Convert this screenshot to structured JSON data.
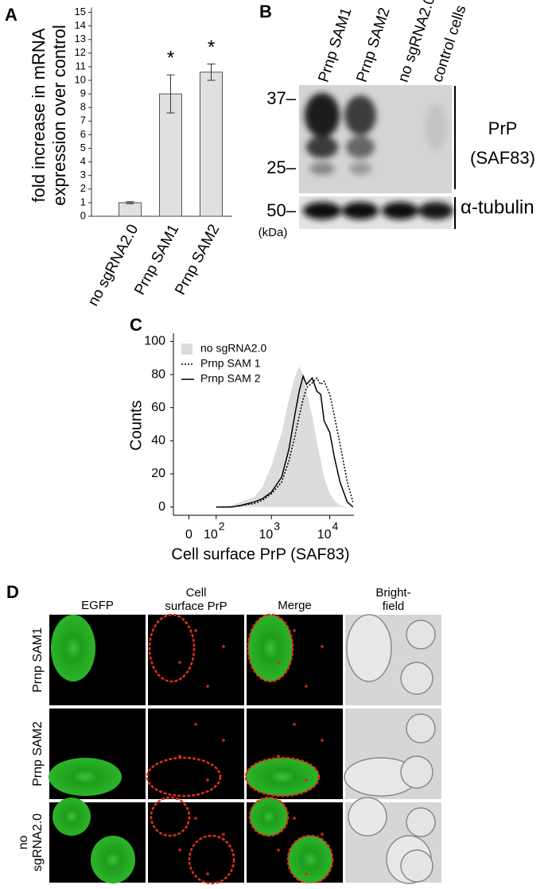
{
  "chart_data": [
    {
      "type": "bar",
      "panel": "A",
      "ylabel": [
        "fold increase in mRNA",
        "expression over control"
      ],
      "categories": [
        "no sgRNA2.0",
        "Prnp SAM1",
        "Prnp SAM2"
      ],
      "values": [
        1,
        9,
        10.6
      ],
      "errors": [
        0.07,
        1.4,
        0.6
      ],
      "annotations": [
        null,
        "*",
        "*"
      ],
      "color": "#e0e0e0",
      "ylim": [
        0,
        15
      ],
      "yticks": [
        0,
        1,
        2,
        3,
        4,
        5,
        6,
        7,
        8,
        9,
        10,
        11,
        12,
        13,
        14,
        15
      ]
    },
    {
      "type": "line",
      "panel": "C",
      "xlabel": "Cell surface PrP (SAF83)",
      "ylabel": "Counts",
      "x": [
        100,
        200,
        300,
        500,
        700,
        1000,
        1500,
        2000,
        2500,
        3000,
        3500,
        4000,
        5000,
        6000,
        7000,
        8000,
        10000,
        12000,
        15000,
        20000,
        25000
      ],
      "series": [
        {
          "name": "no sgRNA2.0",
          "color": "#dcdcdc",
          "style": "fill",
          "values": [
            0,
            1,
            3,
            6,
            12,
            25,
            45,
            65,
            78,
            85,
            80,
            70,
            55,
            40,
            28,
            18,
            8,
            4,
            1,
            0,
            0
          ]
        },
        {
          "name": "Prnp SAM 1",
          "color": "#000000",
          "style": "dotted",
          "values": [
            0,
            0,
            1,
            2,
            4,
            8,
            15,
            28,
            42,
            55,
            65,
            72,
            75,
            78,
            74,
            76,
            68,
            55,
            38,
            15,
            3
          ]
        },
        {
          "name": "Prnp SAM 2",
          "color": "#000000",
          "style": "solid",
          "values": [
            0,
            0,
            1,
            3,
            5,
            9,
            18,
            35,
            55,
            70,
            79,
            74,
            78,
            70,
            68,
            52,
            45,
            30,
            15,
            3,
            0
          ]
        }
      ],
      "xscale": "biexponential",
      "xlim": [
        -50,
        26000
      ],
      "xticks": [
        0,
        {
          "value": 100,
          "label": "10",
          "exponent": "2"
        },
        {
          "value": 1000,
          "label": "10",
          "exponent": "3"
        },
        {
          "value": 10000,
          "label": "10",
          "exponent": "4"
        }
      ],
      "ylim": [
        -5,
        105
      ],
      "yticks": [
        0,
        20,
        40,
        60,
        80,
        100
      ],
      "legend": "upper left"
    }
  ],
  "blot": {
    "panel": "B",
    "lanes": [
      "Prnp SAM1",
      "Prnp SAM2",
      "no sgRNA2.0",
      "control cells"
    ],
    "markers": [
      "37–",
      "25–",
      "50–"
    ],
    "unit": "(kDa)",
    "labels": [
      "PrP",
      "(SAF83)"
    ],
    "loading": "α-tubulin"
  },
  "micrographs": {
    "panel": "D",
    "columns": [
      [
        "EGFP"
      ],
      [
        "Cell",
        "surface PrP"
      ],
      [
        "Merge"
      ],
      [
        "Bright-",
        "field"
      ]
    ],
    "rows": [
      [
        "Prnp SAM1"
      ],
      [
        "Prnp SAM2"
      ],
      [
        "no",
        "sgRNA2.0"
      ]
    ]
  }
}
